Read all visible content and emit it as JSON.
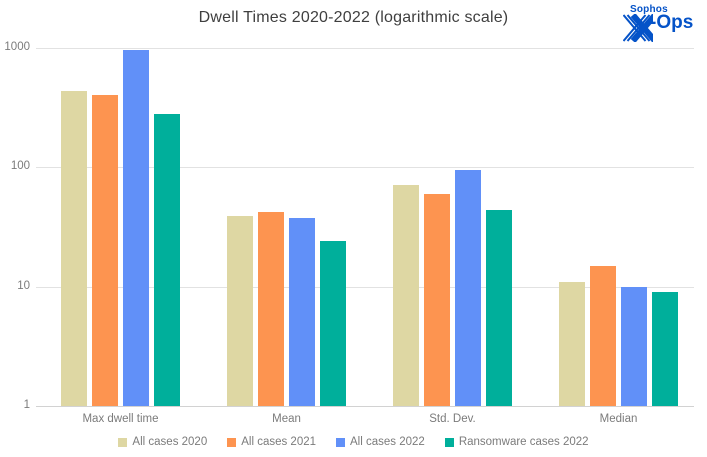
{
  "header": {
    "title": "Dwell Times 2020-2022 (logarithmic scale)"
  },
  "logo": {
    "brand": "Sophos",
    "suffix": "-Ops",
    "color": "#0553c8"
  },
  "chart_data": {
    "type": "bar",
    "scale": "log10",
    "title": "Dwell Times 2020-2022 (logarithmic scale)",
    "categories": [
      "Max dwell time",
      "Mean",
      "Std. Dev.",
      "Median"
    ],
    "series": [
      {
        "name": "All cases 2020",
        "color": "#ded7a3",
        "values": [
          439,
          39,
          71,
          11
        ]
      },
      {
        "name": "All cases 2021",
        "color": "#fd9450",
        "values": [
          408,
          42,
          60,
          15
        ]
      },
      {
        "name": "All cases 2022",
        "color": "#6190f8",
        "values": [
          955,
          38,
          95,
          10
        ]
      },
      {
        "name": "Ransomware cases 2022",
        "color": "#00af9b",
        "values": [
          281,
          24,
          44,
          9
        ]
      }
    ],
    "y_ticks": [
      1,
      10,
      100,
      1000
    ],
    "ylim": [
      1,
      1000
    ],
    "xlabel": "",
    "ylabel": "",
    "grid": true,
    "legend_position": "bottom"
  }
}
